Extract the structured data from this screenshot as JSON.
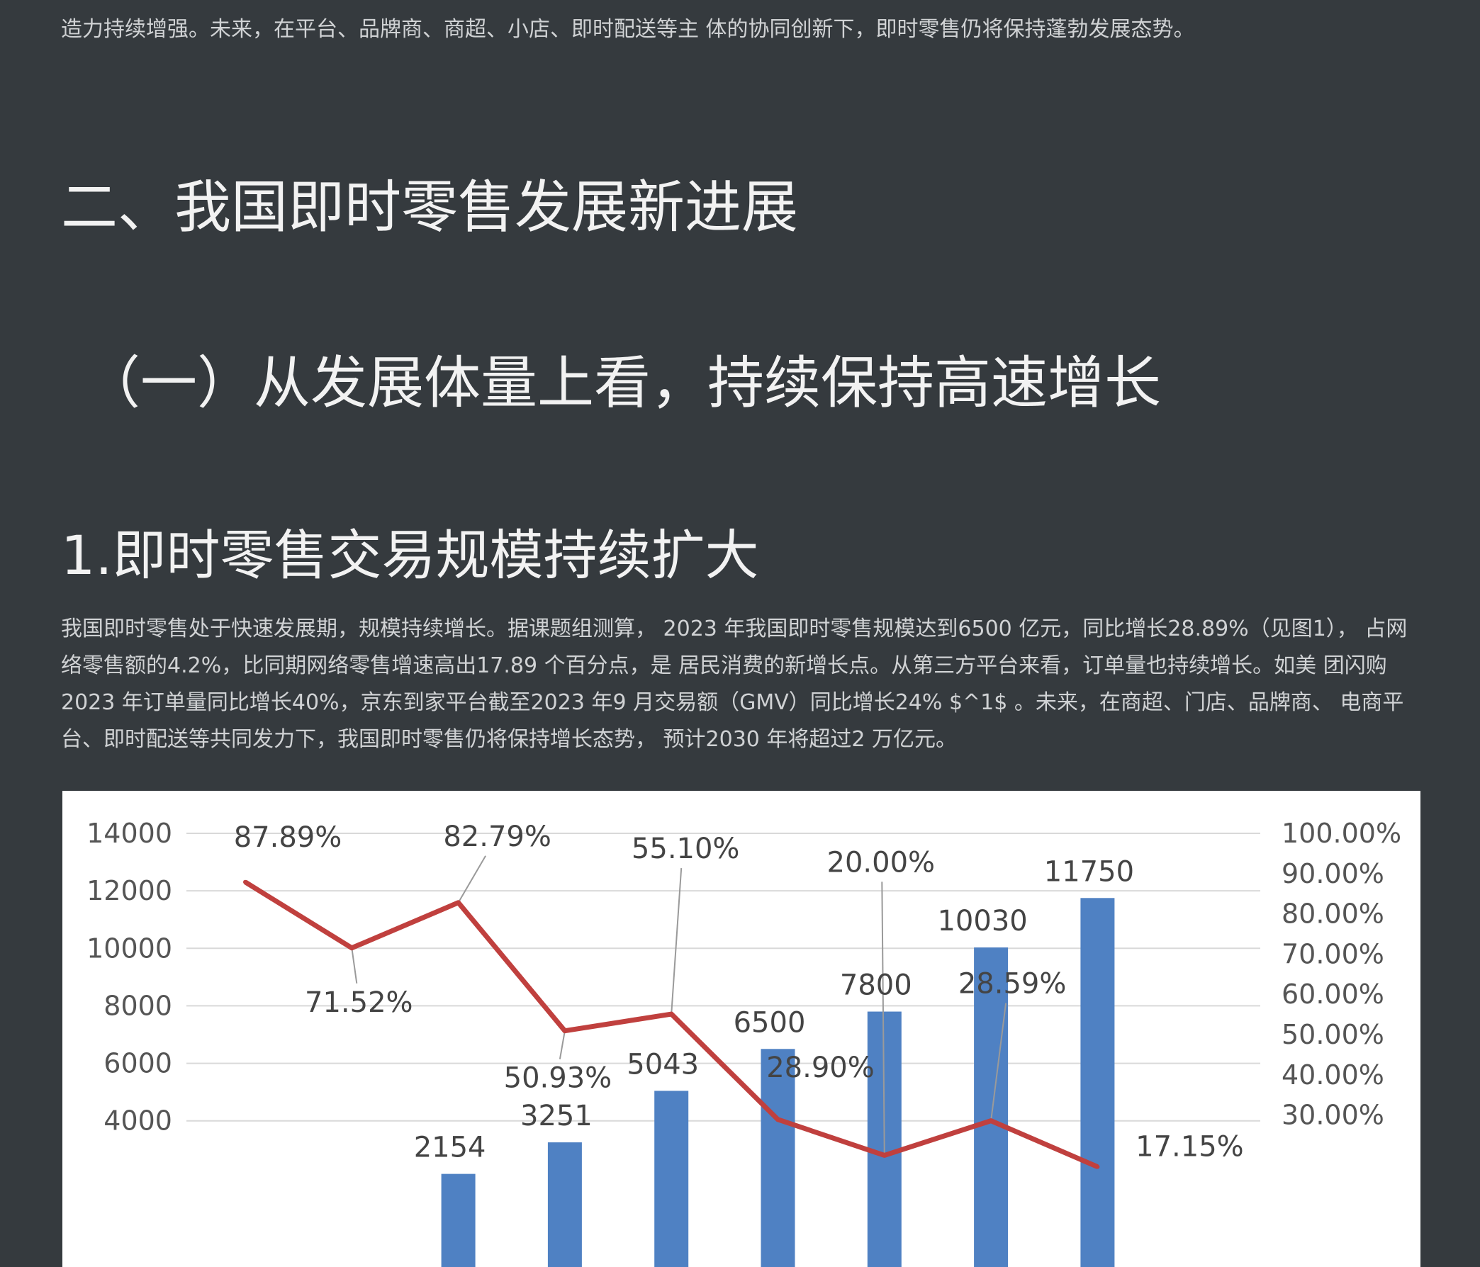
{
  "intro_paragraph": "造力持续增强。未来，在平台、品牌商、商超、小店、即时配送等主 体的协同创新下，即时零售仍将保持蓬勃发展态势。",
  "section_title": "二、我国即时零售发展新进展",
  "subsection_title": "（一）从发展体量上看，持续保持高速增长",
  "item_title": "1.即时零售交易规模持续扩大",
  "body_paragraph": "我国即时零售处于快速发展期，规模持续增长。据课题组测算， 2023 年我国即时零售规模达到6500 亿元，同比增长28.89%（见图1）， 占网络零售额的4.2%，比同期网络零售增速高出17.89 个百分点，是 居民消费的新增长点。从第三方平台来看，订单量也持续增长。如美 团闪购2023 年订单量同比增长40%，京东到家平台截至2023 年9 月交易额（GMV）同比增长24% $^1$ 。未来，在商超、门店、品牌商、 电商平台、即时配送等共同发力下，我国即时零售仍将保持增长态势， 预计2030 年将超过2 万亿元。",
  "chart_data": {
    "type": "bar",
    "left_axis": {
      "ylim": [
        0,
        14000
      ],
      "ticks": [
        "14000",
        "12000",
        "10000",
        "8000",
        "6000",
        "4000"
      ]
    },
    "right_axis": {
      "ylim": [
        0,
        1.0
      ],
      "ticks": [
        "100.00%",
        "90.00%",
        "80.00%",
        "70.00%",
        "60.00%",
        "50.00%",
        "40.00%",
        "30.00%"
      ]
    },
    "series": [
      {
        "kind": "bar",
        "color": "#4f81c3",
        "values": [
          null,
          null,
          2154,
          3251,
          5043,
          6500,
          7800,
          10030,
          11750
        ],
        "labels": [
          "",
          "",
          "2154",
          "3251",
          "5043",
          "6500",
          "7800",
          "10030",
          "11750"
        ]
      },
      {
        "kind": "line",
        "color": "#c0403e",
        "values": [
          0.8789,
          0.7152,
          0.8279,
          0.5093,
          0.551,
          0.289,
          0.2,
          0.2859,
          0.1715
        ],
        "labels": [
          "87.89%",
          "71.52%",
          "82.79%",
          "50.93%",
          "55.10%",
          "28.90%",
          "20.00%",
          "28.59%",
          "17.15%"
        ]
      }
    ],
    "grid": true,
    "colors": {
      "grid": "#d9d9d9",
      "axis_text": "#555555",
      "data_label": "#444444",
      "leader": "#9a9a9a"
    }
  }
}
